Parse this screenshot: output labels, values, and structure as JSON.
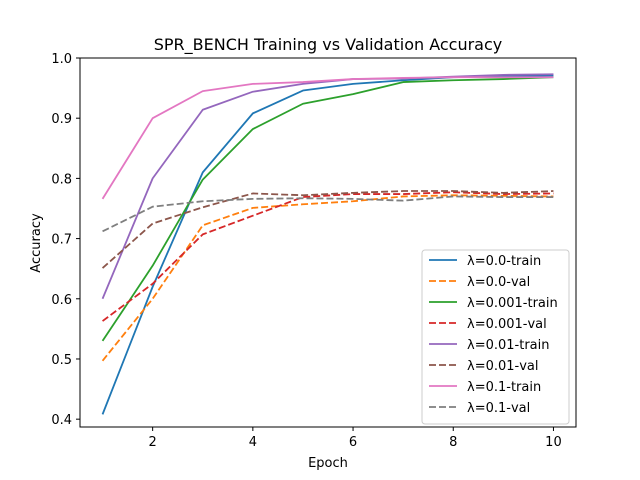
{
  "chart_data": {
    "type": "line",
    "title": "SPR_BENCH Training vs Validation Accuracy",
    "xlabel": "Epoch",
    "ylabel": "Accuracy",
    "xlim": [
      0.55,
      10.45
    ],
    "ylim": [
      0.387,
      1.0
    ],
    "xticks": [
      2,
      4,
      6,
      8,
      10
    ],
    "yticks": [
      0.4,
      0.5,
      0.6,
      0.7,
      0.8,
      0.9,
      1.0
    ],
    "ytick_labels": [
      "0.4",
      "0.5",
      "0.6",
      "0.7",
      "0.8",
      "0.9",
      "1.0"
    ],
    "legend_position": "lower-right",
    "grid": false,
    "x": [
      1,
      2,
      3,
      4,
      5,
      6,
      7,
      8,
      9,
      10
    ],
    "series": [
      {
        "name": "λ=0.0-train",
        "color": "#1f77b4",
        "dash": "solid",
        "values": [
          0.408,
          0.62,
          0.81,
          0.908,
          0.946,
          0.957,
          0.963,
          0.968,
          0.97,
          0.971
        ]
      },
      {
        "name": "λ=0.0-val",
        "color": "#ff7f0e",
        "dash": "dashed",
        "values": [
          0.497,
          0.6,
          0.722,
          0.751,
          0.757,
          0.762,
          0.77,
          0.772,
          0.771,
          0.77
        ]
      },
      {
        "name": "λ=0.001-train",
        "color": "#2ca02c",
        "dash": "solid",
        "values": [
          0.53,
          0.655,
          0.798,
          0.882,
          0.924,
          0.94,
          0.96,
          0.963,
          0.965,
          0.968
        ]
      },
      {
        "name": "λ=0.001-val",
        "color": "#d62728",
        "dash": "dashed",
        "values": [
          0.563,
          0.625,
          0.707,
          0.738,
          0.769,
          0.774,
          0.774,
          0.777,
          0.774,
          0.775
        ]
      },
      {
        "name": "λ=0.01-train",
        "color": "#9467bd",
        "dash": "solid",
        "values": [
          0.6,
          0.8,
          0.914,
          0.944,
          0.957,
          0.965,
          0.966,
          0.969,
          0.972,
          0.973
        ]
      },
      {
        "name": "λ=0.01-val",
        "color": "#8c564b",
        "dash": "dashed",
        "values": [
          0.651,
          0.725,
          0.752,
          0.775,
          0.772,
          0.776,
          0.779,
          0.779,
          0.776,
          0.779
        ]
      },
      {
        "name": "λ=0.1-train",
        "color": "#e377c2",
        "dash": "solid",
        "values": [
          0.766,
          0.9,
          0.945,
          0.957,
          0.96,
          0.965,
          0.967,
          0.968,
          0.968,
          0.968
        ]
      },
      {
        "name": "λ=0.1-val",
        "color": "#7f7f7f",
        "dash": "dashed",
        "values": [
          0.712,
          0.753,
          0.762,
          0.766,
          0.767,
          0.766,
          0.763,
          0.77,
          0.769,
          0.769
        ]
      }
    ]
  }
}
